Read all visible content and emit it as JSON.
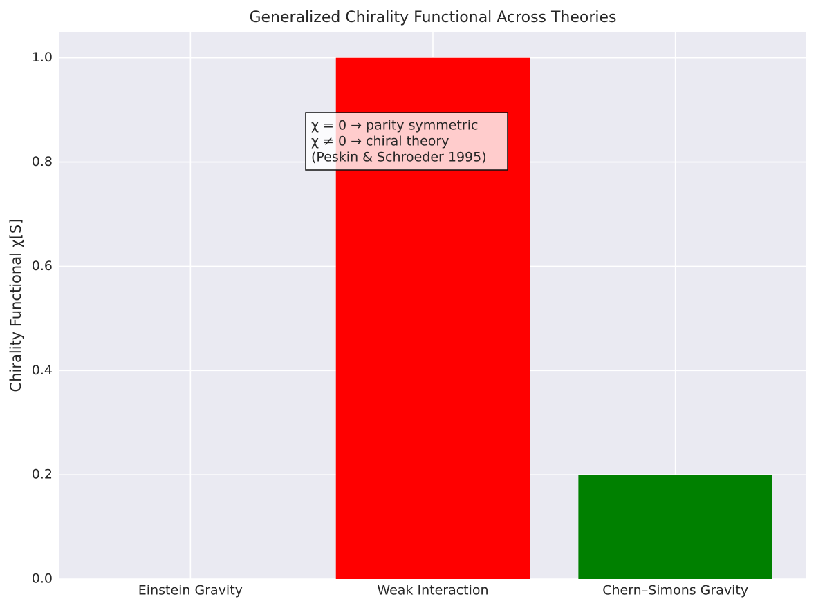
{
  "chart_data": {
    "type": "bar",
    "title": "Generalized Chirality Functional Across Theories",
    "y_label": "Chirality Functional χ[S]",
    "categories": [
      "Einstein Gravity",
      "Weak Interaction",
      "Chern–Simons Gravity"
    ],
    "values": [
      0,
      1.0,
      0.2
    ],
    "colors": [
      "blue",
      "red",
      "green"
    ],
    "ylim": [
      0,
      1.05
    ],
    "yticks": [
      {
        "value": 0,
        "label": "0.0"
      },
      0.2,
      0.4,
      0.6,
      0.8,
      {
        "value": 1,
        "label": "1.0"
      }
    ],
    "grid": true,
    "annotation": [
      "χ = 0 → parity symmetric",
      "χ ≠ 0 → chiral theory",
      "(Peskin & Schroeder 1995)"
    ]
  }
}
